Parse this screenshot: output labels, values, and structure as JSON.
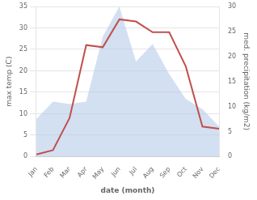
{
  "chart_data": {
    "type": "line",
    "categories": [
      "Jan",
      "Feb",
      "Mar",
      "Apr",
      "May",
      "Jun",
      "Jul",
      "Aug",
      "Sep",
      "Oct",
      "Nov",
      "Dec"
    ],
    "series": [
      {
        "type": "area",
        "axis": "y2",
        "color": "#aec6e8",
        "values": [
          7.5,
          11.0,
          10.5,
          11.0,
          24.0,
          30.0,
          19.0,
          22.5,
          16.5,
          11.5,
          9.5,
          6.0
        ]
      },
      {
        "type": "line",
        "color": "#c0504d",
        "values": [
          0.5,
          1.5,
          9.0,
          26.0,
          25.5,
          32.0,
          31.5,
          29.0,
          29.0,
          21.0,
          7.0,
          6.5
        ]
      }
    ],
    "xlabel": "date (month)",
    "ylabel": "max temp (C)",
    "y2label": "med. precipitation (kg/m2)",
    "ylim": [
      0,
      35
    ],
    "yticks": [
      0,
      5,
      10,
      15,
      20,
      25,
      30,
      35
    ],
    "y2lim": [
      0,
      30
    ],
    "y2ticks": [
      0,
      5,
      10,
      15,
      20,
      25,
      30
    ],
    "grid": true
  }
}
